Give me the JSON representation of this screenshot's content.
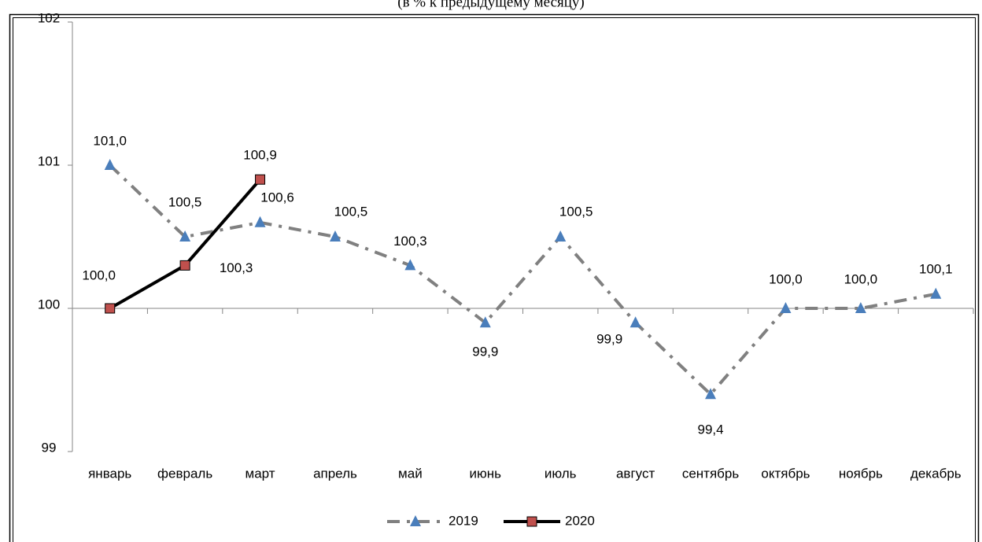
{
  "chart_data": {
    "type": "line",
    "subtitle": "(в % к предыдущему месяцу)",
    "categories": [
      "январь",
      "февраль",
      "март",
      "апрель",
      "май",
      "июнь",
      "июль",
      "август",
      "сентябрь",
      "октябрь",
      "ноябрь",
      "декабрь"
    ],
    "series": [
      {
        "name": "2019",
        "color": "#808080",
        "marker_color": "#4a7ebb",
        "values": [
          101.0,
          100.5,
          100.6,
          100.5,
          100.3,
          99.9,
          100.5,
          99.9,
          99.4,
          100.0,
          100.0,
          100.1
        ],
        "value_labels": [
          "101,0",
          "100,5",
          "100,6",
          "100,5",
          "100,3",
          "99,9",
          "100,5",
          "99,9",
          "99,4",
          "100,0",
          "100,0",
          "100,1"
        ]
      },
      {
        "name": "2020",
        "color": "#000000",
        "marker_color": "#c0504d",
        "values": [
          100.0,
          100.3,
          100.9,
          null,
          null,
          null,
          null,
          null,
          null,
          null,
          null,
          null
        ],
        "value_labels": [
          "100,0",
          "100,3",
          "100,9",
          null,
          null,
          null,
          null,
          null,
          null,
          null,
          null,
          null
        ]
      }
    ],
    "ylim": [
      99,
      102
    ],
    "yticks": [
      99,
      100,
      101,
      102
    ]
  }
}
